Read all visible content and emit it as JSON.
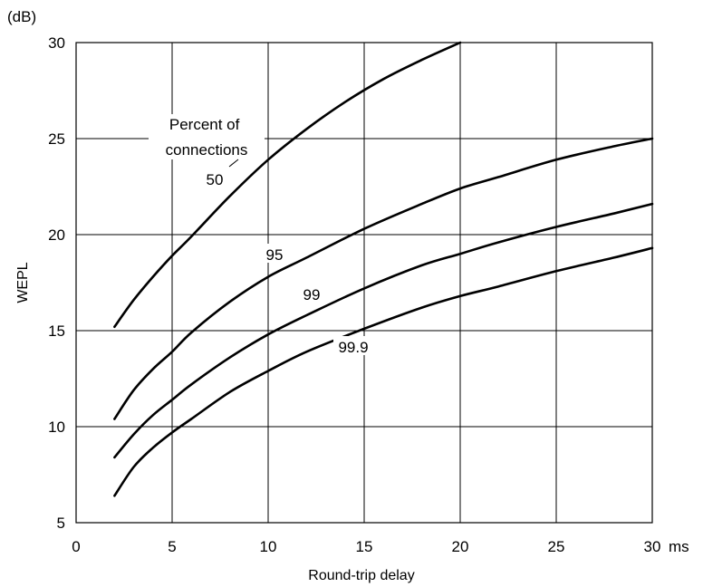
{
  "chart_data": {
    "type": "line",
    "title": "",
    "xlabel": "Round-trip delay",
    "ylabel": "WEPL",
    "x_unit": "ms",
    "y_unit": "(dB)",
    "xlim": [
      0,
      30
    ],
    "ylim": [
      5,
      30
    ],
    "xticks": [
      "0",
      "5",
      "10",
      "15",
      "20",
      "25",
      "30"
    ],
    "yticks": [
      "5",
      "10",
      "15",
      "20",
      "25",
      "30"
    ],
    "grid": true,
    "legend_title": "Percent of connections",
    "series": [
      {
        "name": "50",
        "x": [
          2,
          3,
          4,
          5,
          6,
          8,
          10,
          12,
          14,
          16,
          18,
          20
        ],
        "y": [
          15.2,
          16.6,
          17.8,
          18.9,
          19.9,
          22.0,
          23.9,
          25.5,
          26.9,
          28.1,
          29.1,
          30.0
        ]
      },
      {
        "name": "95",
        "x": [
          2,
          3,
          4,
          5,
          6,
          8,
          10,
          12,
          15,
          18,
          20,
          22,
          25,
          28,
          30
        ],
        "y": [
          10.4,
          11.9,
          13.0,
          13.9,
          14.9,
          16.5,
          17.8,
          18.8,
          20.3,
          21.6,
          22.4,
          23.0,
          23.9,
          24.6,
          25.0
        ]
      },
      {
        "name": "99",
        "x": [
          2,
          3,
          4,
          5,
          6,
          8,
          10,
          12,
          15,
          18,
          20,
          22,
          25,
          28,
          30
        ],
        "y": [
          8.4,
          9.6,
          10.6,
          11.4,
          12.2,
          13.6,
          14.8,
          15.8,
          17.2,
          18.4,
          19.0,
          19.6,
          20.4,
          21.1,
          21.6
        ]
      },
      {
        "name": "99.9",
        "x": [
          2,
          3,
          4,
          5,
          6,
          8,
          10,
          12,
          15,
          18,
          20,
          22,
          25,
          28,
          30
        ],
        "y": [
          6.4,
          7.9,
          8.9,
          9.7,
          10.4,
          11.8,
          12.9,
          13.9,
          15.1,
          16.2,
          16.8,
          17.3,
          18.1,
          18.8,
          19.3
        ]
      }
    ]
  }
}
